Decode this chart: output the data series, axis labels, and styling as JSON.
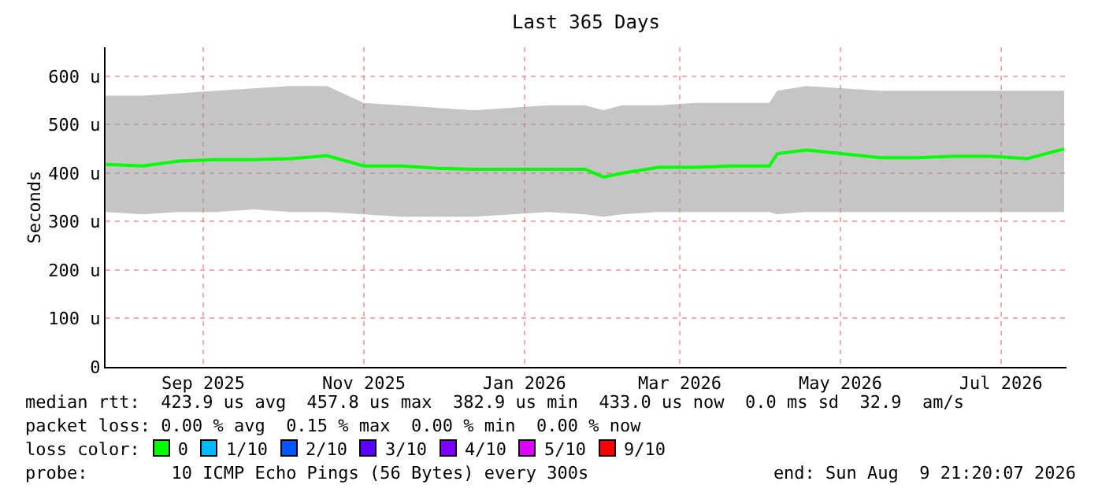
{
  "chart_data": {
    "type": "line",
    "title": "Last 365 Days",
    "ylabel": "Seconds",
    "x": [
      "2025-08-10",
      "2025-08-24",
      "2025-09-07",
      "2025-09-21",
      "2025-10-05",
      "2025-10-19",
      "2025-11-02",
      "2025-11-16",
      "2025-11-30",
      "2025-12-14",
      "2025-12-28",
      "2026-01-11",
      "2026-01-25",
      "2026-02-08",
      "2026-02-15",
      "2026-02-22",
      "2026-03-08",
      "2026-03-22",
      "2026-04-05",
      "2026-04-19",
      "2026-04-22",
      "2026-05-03",
      "2026-05-17",
      "2026-05-31",
      "2026-06-14",
      "2026-06-28",
      "2026-07-12",
      "2026-07-26",
      "2026-08-09"
    ],
    "series": [
      {
        "color": "#00ff00",
        "values": [
          418,
          415,
          425,
          428,
          428,
          430,
          436,
          415,
          415,
          410,
          408,
          408,
          408,
          408,
          392,
          400,
          412,
          412,
          415,
          415,
          440,
          448,
          440,
          432,
          432,
          435,
          435,
          430,
          450
        ],
        "lower": [
          320,
          315,
          320,
          320,
          325,
          320,
          320,
          315,
          310,
          310,
          310,
          315,
          320,
          315,
          310,
          315,
          320,
          320,
          320,
          320,
          315,
          320,
          320,
          320,
          320,
          320,
          320,
          320,
          320
        ],
        "upper": [
          560,
          560,
          565,
          570,
          575,
          580,
          580,
          545,
          540,
          535,
          530,
          535,
          540,
          540,
          530,
          540,
          540,
          545,
          545,
          545,
          570,
          580,
          575,
          570,
          570,
          570,
          570,
          570,
          570
        ]
      }
    ],
    "ylim": [
      0,
      660
    ],
    "yticks": [
      {
        "value": 0,
        "label": "0"
      },
      {
        "value": 100,
        "label": "100 u"
      },
      {
        "value": 200,
        "label": "200 u"
      },
      {
        "value": 300,
        "label": "300 u"
      },
      {
        "value": 400,
        "label": "400 u"
      },
      {
        "value": 500,
        "label": "500 u"
      },
      {
        "value": 600,
        "label": "600 u"
      }
    ],
    "xlim": [
      "2025-08-09T21:20",
      "2026-08-09T21:20"
    ],
    "xticks": [
      {
        "value": "2025-09-16",
        "label": "Sep 2025"
      },
      {
        "value": "2025-11-16",
        "label": "Nov 2025"
      },
      {
        "value": "2026-01-16",
        "label": "Jan 2026"
      },
      {
        "value": "2026-03-16",
        "label": "Mar 2026"
      },
      {
        "value": "2026-05-16",
        "label": "May 2026"
      },
      {
        "value": "2026-07-16",
        "label": "Jul 2026"
      }
    ],
    "grid": true,
    "marker": "none",
    "line_style": "solid",
    "annotations": [
      "median rtt:  423.9 us avg  457.8 us max  382.9 us min  433.0 us now  0.0 ms sd  32.9  am/s",
      "packet loss: 0.00 % avg  0.15 % max  0.00 % min  0.00 % now",
      "loss color:",
      "0",
      "1/10",
      "2/10",
      "3/10",
      "4/10",
      "5/10",
      "9/10",
      "probe:        10 ICMP Echo Pings (56 Bytes) every 300s",
      "end: Sun Aug  9 21:20:07 2026"
    ]
  }
}
